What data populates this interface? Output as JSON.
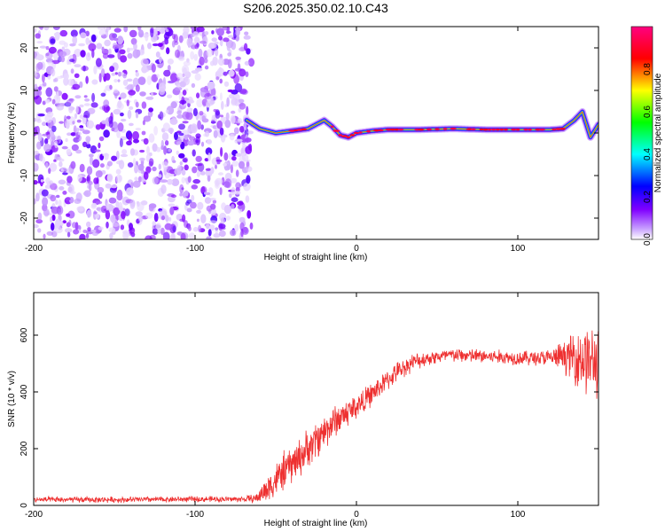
{
  "chart_data": [
    {
      "type": "heatmap",
      "title": "S206.2025.350.02.10.C43",
      "xlabel": "Height of straight line (km)",
      "ylabel": "Frequency (Hz)",
      "xlim": [
        -200,
        150
      ],
      "ylim": [
        -25,
        25
      ],
      "x_ticks": [
        "-200",
        "-100",
        "0",
        "100"
      ],
      "y_ticks": [
        "20",
        "10",
        "0",
        "-10",
        "-20"
      ],
      "colorbar": {
        "label": "Normalized spectral amplitude",
        "range": [
          0,
          1
        ],
        "ticks": [
          "0.0",
          "0.2",
          "0.4",
          "0.6",
          "0.8"
        ],
        "colors": [
          "#ffffff",
          "#8000ff",
          "#0000ff",
          "#00ffff",
          "#00ff00",
          "#ffff00",
          "#ff0000",
          "#ff0080"
        ]
      },
      "noise_region": {
        "x_from": -200,
        "x_to": -65,
        "freq_from": -25,
        "freq_to": 25
      },
      "ridge": {
        "x": [
          -68,
          -60,
          -50,
          -40,
          -30,
          -25,
          -20,
          -15,
          -10,
          -5,
          0,
          10,
          20,
          40,
          60,
          80,
          100,
          120,
          128,
          135,
          140,
          145,
          150
        ],
        "freq": [
          3,
          1,
          0,
          0.5,
          1,
          2,
          3,
          1.5,
          -0.5,
          -1,
          0,
          0.5,
          0.8,
          0.8,
          1,
          0.8,
          0.8,
          0.8,
          1,
          3,
          5,
          -1,
          2
        ],
        "level": [
          0.5,
          0.6,
          0.7,
          0.75,
          0.7,
          0.6,
          0.65,
          0.7,
          0.75,
          0.7,
          0.8,
          0.85,
          0.85,
          0.85,
          0.8,
          0.85,
          0.85,
          0.85,
          0.7,
          0.5,
          0.4,
          0.5,
          0.5
        ]
      }
    },
    {
      "type": "line",
      "xlabel": "Height of straight line (km)",
      "ylabel": "SNR (10 * v/v)",
      "xlim": [
        -200,
        150
      ],
      "ylim": [
        0,
        750
      ],
      "x_ticks": [
        "-200",
        "-100",
        "0",
        "100"
      ],
      "y_ticks": [
        "0",
        "200",
        "400",
        "600"
      ],
      "line_color": "#ee3030",
      "series": [
        {
          "name": "SNR",
          "x": [
            -200,
            -150,
            -100,
            -70,
            -62,
            -55,
            -45,
            -35,
            -25,
            -15,
            -5,
            5,
            15,
            25,
            35,
            45,
            60,
            80,
            100,
            120,
            130,
            135,
            140,
            145,
            150
          ],
          "values": [
            20,
            20,
            22,
            22,
            25,
            60,
            120,
            170,
            230,
            290,
            330,
            370,
            420,
            470,
            505,
            520,
            530,
            525,
            520,
            520,
            525,
            525,
            520,
            510,
            500
          ],
          "noise_amplitude": [
            12,
            12,
            12,
            12,
            20,
            60,
            80,
            80,
            80,
            70,
            60,
            50,
            45,
            40,
            35,
            30,
            30,
            30,
            30,
            35,
            70,
            110,
            150,
            150,
            140
          ]
        }
      ]
    }
  ]
}
